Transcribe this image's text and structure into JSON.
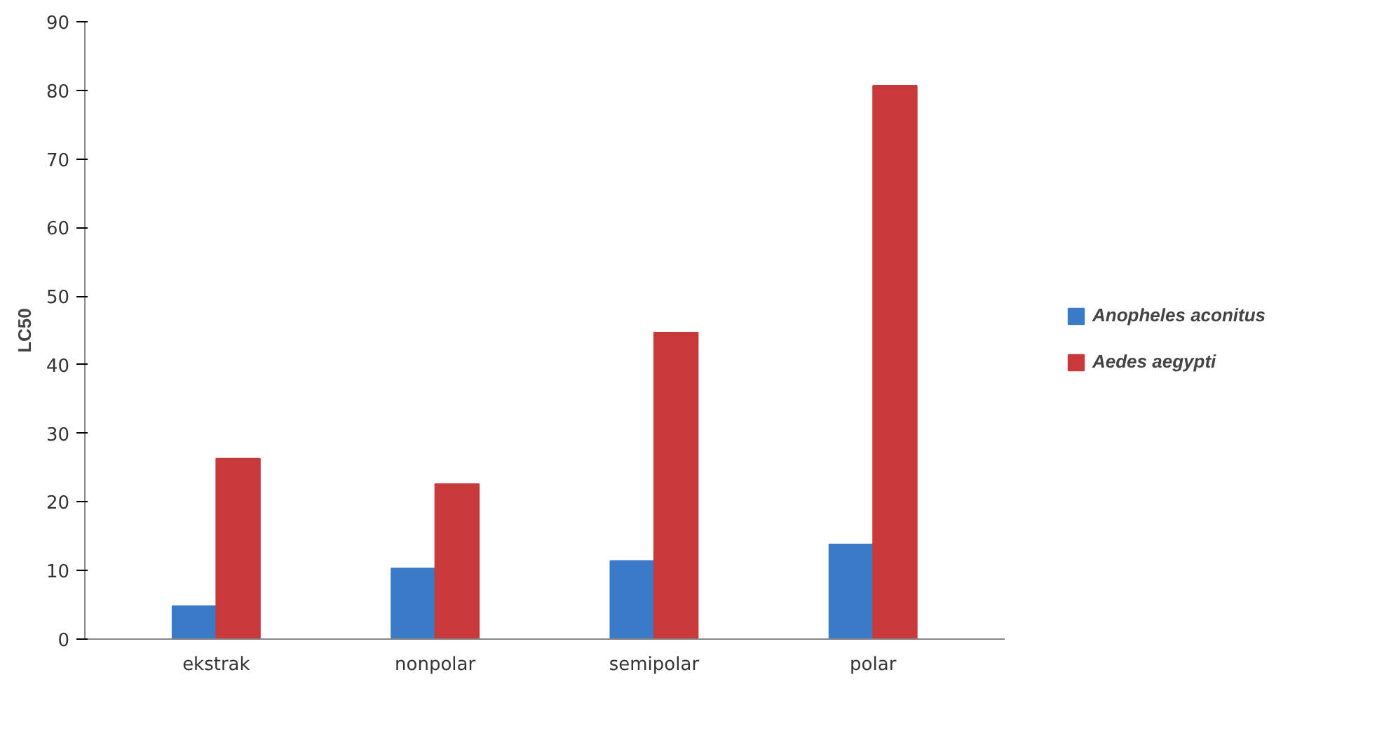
{
  "chart_data": {
    "type": "bar",
    "ylabel": "LC50",
    "categories": [
      "ekstrak",
      "nonpolar",
      "semipolar",
      "polar"
    ],
    "series": [
      {
        "name": "Anopheles aconitus",
        "color": "#3a7bc8",
        "values": [
          4.8,
          10.3,
          11.4,
          13.8
        ]
      },
      {
        "name": "Aedes aegypti",
        "color": "#c83a3a",
        "values": [
          26.3,
          22.6,
          44.7,
          80.7
        ]
      }
    ],
    "ylim": [
      0,
      90
    ],
    "yticks": [
      0,
      10,
      20,
      30,
      40,
      50,
      60,
      70,
      80,
      90
    ],
    "grid": false,
    "legend": "right"
  }
}
